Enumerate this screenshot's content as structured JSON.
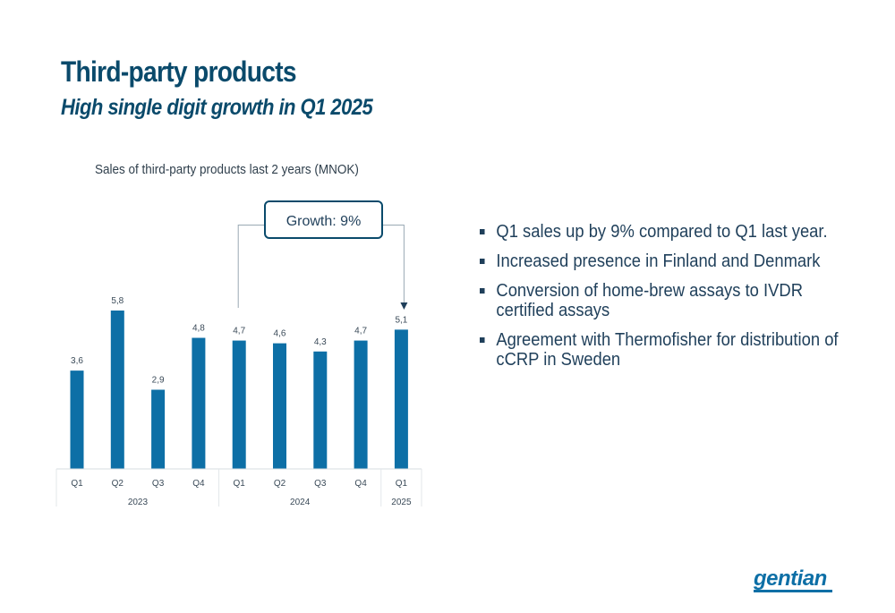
{
  "slide": {
    "title": "Third-party products",
    "subtitle": "High single digit growth in Q1 2025"
  },
  "bullets": [
    "Q1 sales up by 9% compared to Q1 last year.",
    "Increased presence in Finland and Denmark",
    "Conversion of home-brew assays to IVDR certified assays",
    "Agreement with Thermofisher for distribution of cCRP in Sweden"
  ],
  "logo": {
    "text": "gentian"
  },
  "colors": {
    "title": "#0a4a6b",
    "bar": "#0d6fa6",
    "text": "#1f3f5a",
    "callout_border": "#0a4a6b"
  },
  "chart_data": {
    "type": "bar",
    "title": "Sales of third-party products last 2 years (MNOK)",
    "categories": [
      "Q1",
      "Q2",
      "Q3",
      "Q4",
      "Q1",
      "Q2",
      "Q3",
      "Q4",
      "Q1"
    ],
    "groups": [
      {
        "label": "2023",
        "count": 4
      },
      {
        "label": "2024",
        "count": 4
      },
      {
        "label": "2025",
        "count": 1
      }
    ],
    "values": [
      3.6,
      5.8,
      2.9,
      4.8,
      4.7,
      4.6,
      4.3,
      4.7,
      5.1
    ],
    "data_labels": [
      "3,6",
      "5,8",
      "2,9",
      "4,8",
      "4,7",
      "4,6",
      "4,3",
      "4,7",
      "5,1"
    ],
    "ylim": [
      0,
      5.8
    ],
    "grid": false,
    "legend": "none",
    "annotation": {
      "text": "Growth: 9%",
      "from_index": 4,
      "to_index": 8
    }
  }
}
